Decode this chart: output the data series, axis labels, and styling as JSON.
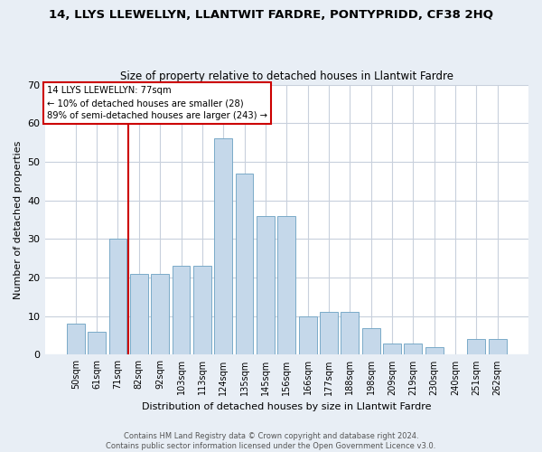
{
  "title": "14, LLYS LLEWELLYN, LLANTWIT FARDRE, PONTYPRIDD, CF38 2HQ",
  "subtitle": "Size of property relative to detached houses in Llantwit Fardre",
  "xlabel": "Distribution of detached houses by size in Llantwit Fardre",
  "ylabel": "Number of detached properties",
  "bar_labels": [
    "50sqm",
    "61sqm",
    "71sqm",
    "82sqm",
    "92sqm",
    "103sqm",
    "113sqm",
    "124sqm",
    "135sqm",
    "145sqm",
    "156sqm",
    "166sqm",
    "177sqm",
    "188sqm",
    "198sqm",
    "209sqm",
    "219sqm",
    "230sqm",
    "240sqm",
    "251sqm",
    "262sqm"
  ],
  "bar_heights": [
    8,
    6,
    30,
    21,
    21,
    23,
    23,
    56,
    47,
    36,
    36,
    10,
    11,
    11,
    7,
    3,
    3,
    2,
    0,
    4,
    4
  ],
  "ylim": [
    0,
    70
  ],
  "yticks": [
    0,
    10,
    20,
    30,
    40,
    50,
    60,
    70
  ],
  "bar_color": "#c5d8ea",
  "bar_edge_color": "#7aaac8",
  "vline_color": "#cc0000",
  "annotation_text": "14 LLYS LLEWELLYN: 77sqm\n← 10% of detached houses are smaller (28)\n89% of semi-detached houses are larger (243) →",
  "annotation_box_color": "#ffffff",
  "annotation_box_edge": "#cc0000",
  "footer": "Contains HM Land Registry data © Crown copyright and database right 2024.\nContains public sector information licensed under the Open Government Licence v3.0.",
  "bg_color": "#e8eef5",
  "plot_bg_color": "#ffffff",
  "grid_color": "#c8d0dc"
}
